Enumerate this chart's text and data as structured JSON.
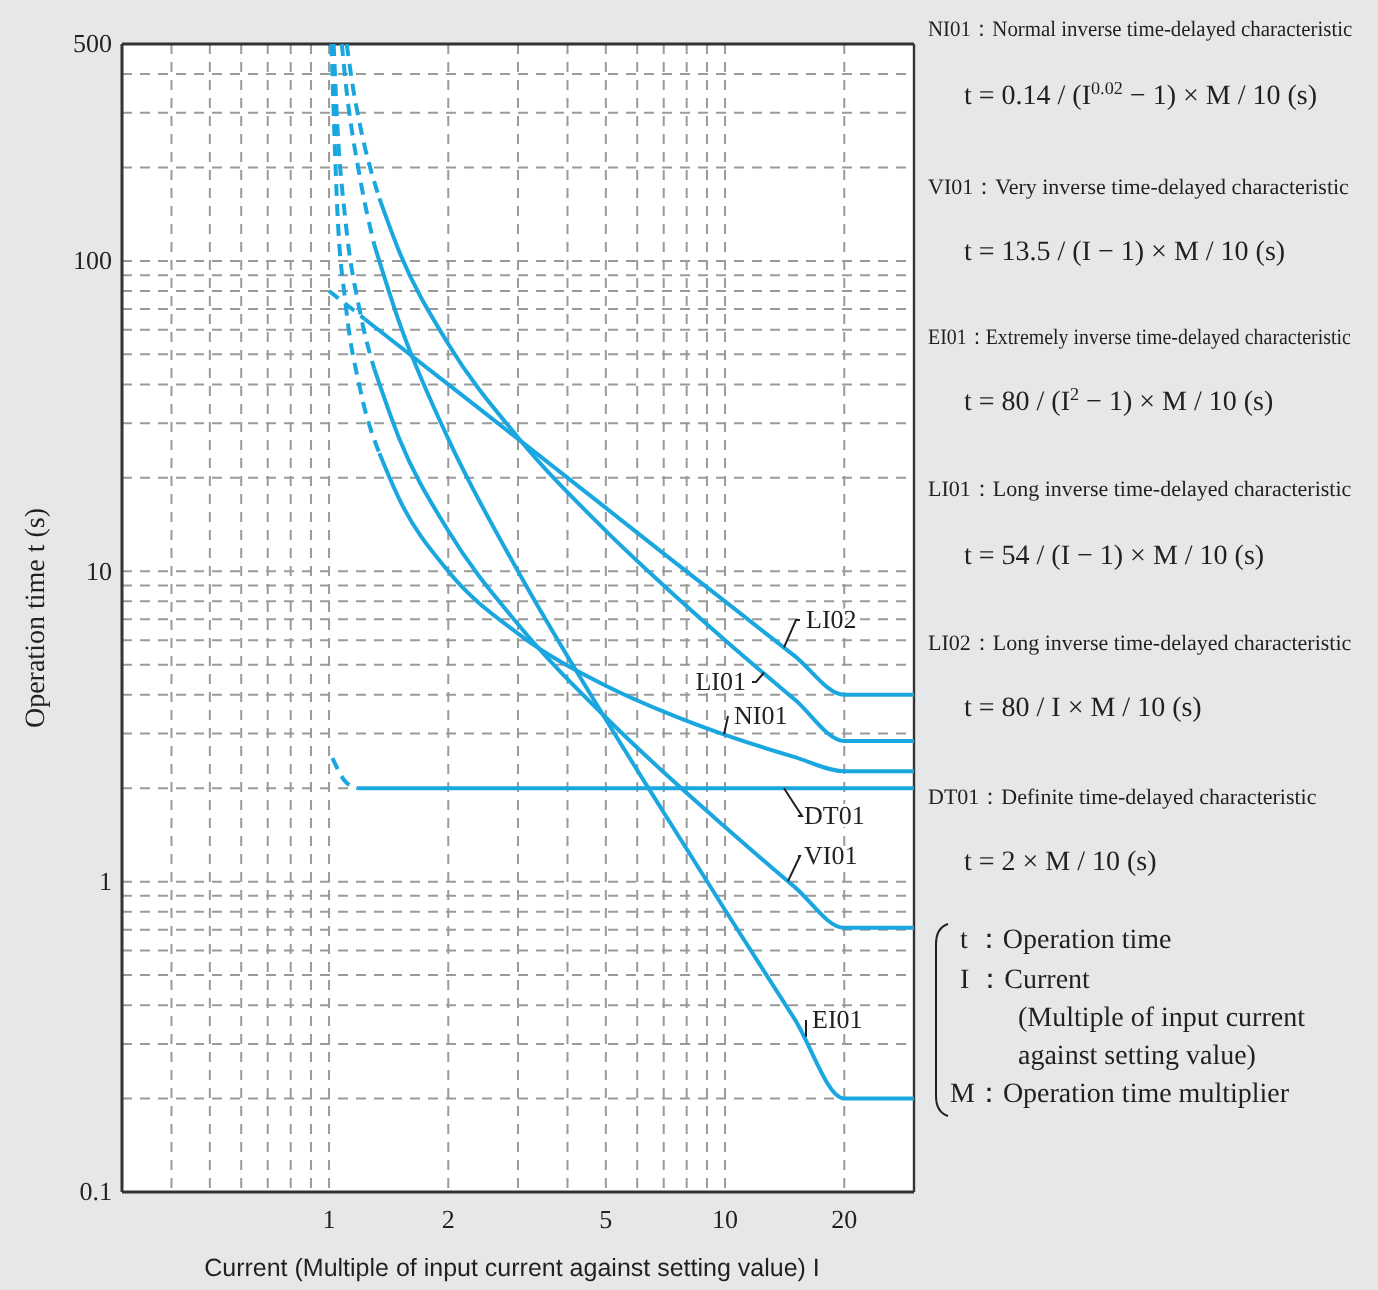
{
  "chart_data": {
    "type": "line",
    "xlabel": "Current (Multiple of input current against setting value) I",
    "ylabel": "Operation time t (s)",
    "log": "xy",
    "grid": true,
    "legend": false,
    "xlim": [
      0.3,
      30
    ],
    "ylim": [
      0.1,
      500
    ],
    "xticks": [
      {
        "value": 0.4,
        "label": null
      },
      {
        "value": 0.5,
        "label": null
      },
      {
        "value": 0.6,
        "label": null
      },
      {
        "value": 0.7,
        "label": null
      },
      {
        "value": 0.8,
        "label": null
      },
      {
        "value": 0.9,
        "label": null
      },
      1,
      2,
      {
        "value": 3,
        "label": null
      },
      {
        "value": 4,
        "label": null
      },
      5,
      {
        "value": 6,
        "label": null
      },
      {
        "value": 7,
        "label": null
      },
      {
        "value": 8,
        "label": null
      },
      {
        "value": 9,
        "label": null
      },
      10,
      20
    ],
    "yticks": [
      0.1,
      {
        "value": 0.2,
        "label": null
      },
      {
        "value": 0.3,
        "label": null
      },
      {
        "value": 0.4,
        "label": null
      },
      {
        "value": 0.5,
        "label": null
      },
      {
        "value": 0.6,
        "label": null
      },
      {
        "value": 0.7,
        "label": null
      },
      {
        "value": 0.8,
        "label": null
      },
      {
        "value": 0.9,
        "label": null
      },
      1,
      {
        "value": 2,
        "label": null
      },
      {
        "value": 3,
        "label": null
      },
      {
        "value": 4,
        "label": null
      },
      {
        "value": 5,
        "label": null
      },
      {
        "value": 6,
        "label": null
      },
      {
        "value": 7,
        "label": null
      },
      {
        "value": 8,
        "label": null
      },
      {
        "value": 9,
        "label": null
      },
      10,
      {
        "value": 20,
        "label": null
      },
      {
        "value": 30,
        "label": null
      },
      {
        "value": 40,
        "label": null
      },
      {
        "value": 50,
        "label": null
      },
      {
        "value": 60,
        "label": null
      },
      {
        "value": 70,
        "label": null
      },
      {
        "value": 80,
        "label": null
      },
      {
        "value": 90,
        "label": null
      },
      100,
      {
        "value": 200,
        "label": null
      },
      {
        "value": 300,
        "label": null
      },
      {
        "value": 400,
        "label": null
      },
      500
    ],
    "series": [
      {
        "name": "NI01",
        "color": "#1aa7e0",
        "line_style": "solid",
        "x": [
          1.34,
          1.5,
          2,
          3,
          5,
          7,
          10,
          15,
          20,
          30
        ],
        "values": [
          24,
          17.2,
          10,
          6.3,
          4.28,
          3.53,
          2.97,
          2.52,
          2.27,
          2.27
        ]
      },
      {
        "name": "VI01",
        "color": "#1aa7e0",
        "line_style": "solid",
        "x": [
          1.3,
          1.5,
          2,
          3,
          5,
          7,
          10,
          15,
          20,
          30
        ],
        "values": [
          45,
          27,
          13.5,
          6.75,
          3.38,
          2.25,
          1.5,
          0.96,
          0.71,
          0.71
        ]
      },
      {
        "name": "EI01",
        "color": "#1aa7e0",
        "line_style": "solid",
        "x": [
          1.3,
          1.5,
          2,
          3,
          5,
          7,
          10,
          15,
          20,
          30
        ],
        "values": [
          113,
          64,
          26.7,
          10,
          3.33,
          1.67,
          0.81,
          0.36,
          0.2,
          0.2
        ]
      },
      {
        "name": "LI01",
        "color": "#1aa7e0",
        "line_style": "solid",
        "x": [
          1.34,
          1.5,
          2,
          3,
          5,
          7,
          10,
          15,
          20,
          30
        ],
        "values": [
          159,
          108,
          54,
          27,
          13.5,
          9,
          6,
          3.86,
          2.84,
          2.84
        ]
      },
      {
        "name": "LI02",
        "color": "#1aa7e0",
        "line_style": "solid",
        "x": [
          1.23,
          1.5,
          2,
          3,
          5,
          7,
          10,
          15,
          20,
          30
        ],
        "values": [
          65,
          53.3,
          40,
          26.7,
          16,
          11.4,
          8,
          5.33,
          4,
          4
        ]
      },
      {
        "name": "DT01",
        "color": "#1aa7e0",
        "line_style": "solid",
        "x": [
          1.18,
          30
        ],
        "values": [
          2,
          2
        ]
      },
      {
        "color": "#1aa7e0",
        "line_style": "dashed",
        "x": [
          1.014,
          1.05,
          1.1,
          1.2,
          1.34
        ],
        "values": [
          500,
          143,
          73.4,
          38.3,
          24
        ]
      },
      {
        "color": "#1aa7e0",
        "line_style": "dashed",
        "x": [
          1.027,
          1.05,
          1.1,
          1.2,
          1.3
        ],
        "values": [
          500,
          270,
          135,
          67.5,
          45
        ]
      },
      {
        "color": "#1aa7e0",
        "line_style": "dashed",
        "x": [
          1.077,
          1.1,
          1.2,
          1.3
        ],
        "values": [
          500,
          381,
          182,
          113
        ]
      },
      {
        "color": "#1aa7e0",
        "line_style": "dashed",
        "x": [
          1.108,
          1.15,
          1.2,
          1.34
        ],
        "values": [
          500,
          360,
          270,
          159
        ]
      },
      {
        "color": "#1aa7e0",
        "line_style": "dashed",
        "x": [
          1.02,
          1.1,
          1.18
        ],
        "values": [
          2.5,
          2.1,
          2
        ]
      },
      {
        "color": "#1aa7e0",
        "line_style": "dashed",
        "x": [
          1,
          1.05,
          1.1,
          1.15,
          1.23
        ],
        "values": [
          80,
          76.2,
          72.7,
          69.6,
          65
        ]
      }
    ],
    "annotations": [
      "NI01：Normal inverse time-delayed characteristic",
      "t = 0.14 / (I$^{0.02}$ − 1) × M / 10 (s)",
      "VI01：Very inverse time-delayed characteristic",
      "t = 13.5 / (I − 1) × M / 10 (s)",
      "EI01：Extremely inverse time-delayed characteristic",
      "t = 80 / (I$^{2}$ − 1) × M / 10 (s)",
      "LI01：Long inverse time-delayed characteristic",
      "t = 54 / (I − 1) × M / 10 (s)",
      "LI02：Long inverse time-delayed characteristic",
      "t = 80 / I × M / 10 (s)",
      "DT01：Definite time-delayed characteristic",
      "t = 2 × M / 10 (s)",
      "t ：Operation time",
      "I ：Current",
      "(Multiple of input current",
      "against setting value)",
      "M：Operation time multiplier"
    ]
  }
}
